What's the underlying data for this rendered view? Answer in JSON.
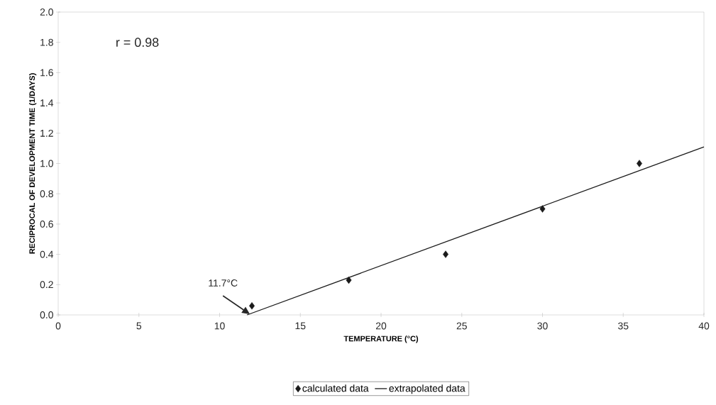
{
  "chart_data": {
    "type": "scatter",
    "xlabel": "TEMPERATURE (°C)",
    "ylabel": "RECIPROCAL OF DEVELOPMENT TIME   (1/DAYS)",
    "xlim": [
      0,
      40
    ],
    "xticks": [
      0,
      5,
      10,
      15,
      20,
      25,
      30,
      35,
      40
    ],
    "ylim": [
      0,
      2.0
    ],
    "yticks": [
      {
        "value": 0,
        "label": "0.0"
      },
      {
        "value": 0.2,
        "label": "0.2"
      },
      {
        "value": 0.4,
        "label": "0.4"
      },
      {
        "value": 0.6,
        "label": "0.6"
      },
      {
        "value": 0.8,
        "label": "0.8"
      },
      {
        "value": 1.0,
        "label": "1.0"
      },
      {
        "value": 1.2,
        "label": "1.2"
      },
      {
        "value": 1.4,
        "label": "1.4"
      },
      {
        "value": 1.6,
        "label": "1.6"
      },
      {
        "value": 1.8,
        "label": "1.8"
      },
      {
        "value": 2.0,
        "label": "2.0"
      }
    ],
    "legend": "bottom",
    "series": [
      {
        "name": "calculated data",
        "type": "scatter",
        "marker": "diamond",
        "color": "#1a1a1a",
        "x": [
          12,
          18,
          24,
          30,
          36
        ],
        "values": [
          0.06,
          0.23,
          0.4,
          0.7,
          1.0
        ]
      },
      {
        "name": "extrapolated data",
        "type": "line",
        "line_style": "solid",
        "color": "#1a1a1a",
        "x": [
          11.7,
          40
        ],
        "values": [
          0,
          1.11
        ]
      }
    ],
    "annotations": [
      "r  = 0.98",
      {
        "text": "11.7°C",
        "x": 11.7,
        "y": 0
      }
    ]
  }
}
